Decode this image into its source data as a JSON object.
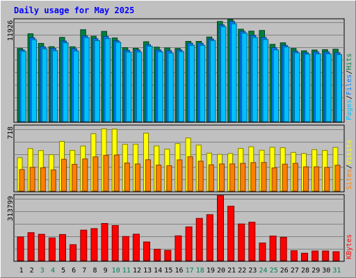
{
  "chart_data": {
    "type": "bar",
    "title": "Daily usage for May 2025",
    "days": [
      "1",
      "2",
      "3",
      "4",
      "5",
      "6",
      "7",
      "8",
      "9",
      "10",
      "11",
      "12",
      "13",
      "14",
      "15",
      "16",
      "17",
      "18",
      "19",
      "20",
      "21",
      "22",
      "23",
      "24",
      "25",
      "26",
      "27",
      "28",
      "29",
      "30",
      "31"
    ],
    "weekend_days": [
      "3",
      "4",
      "10",
      "11",
      "17",
      "18",
      "24",
      "25",
      "31"
    ],
    "panels": [
      {
        "name": "hits-files-pages",
        "ymax_label": "11926",
        "ymax": 11926,
        "legend": [
          "Pages",
          "/",
          "Files",
          "/",
          "Hits"
        ],
        "legend_colors": [
          "#00c0ff",
          "#000000",
          "#0080ff",
          "#000000",
          "#008040"
        ],
        "series": [
          {
            "name": "Hits",
            "color": "#008040",
            "values": [
              8660,
              10400,
              9260,
              8870,
              9970,
              8860,
              10880,
              10110,
              10680,
              9900,
              8760,
              8680,
              9460,
              8820,
              8730,
              8660,
              9500,
              9500,
              10020,
              11850,
              12070,
              10940,
              10710,
              10790,
              9150,
              9330,
              8660,
              8380,
              8470,
              8520,
              8570
            ]
          },
          {
            "name": "Files",
            "color": "#0080ff",
            "values": [
              8480,
              9930,
              8860,
              8650,
              9540,
              8610,
              10140,
              9810,
              10080,
              9570,
              8450,
              8470,
              9100,
              8480,
              8390,
              8480,
              9280,
              9270,
              9770,
              11450,
              11850,
              10680,
              10210,
              9970,
              8740,
              9020,
              8330,
              8140,
              8240,
              8240,
              8150
            ]
          },
          {
            "name": "Pages",
            "color": "#00c0ff",
            "values": [
              8320,
              9700,
              8620,
              8400,
              9330,
              8360,
              9940,
              9600,
              9840,
              9390,
              8230,
              8230,
              8920,
              8270,
              8130,
              8290,
              9040,
              9040,
              9600,
              11250,
              11590,
              10480,
              9970,
              9720,
              8500,
              8840,
              8150,
              7990,
              8020,
              8020,
              7940
            ]
          }
        ]
      },
      {
        "name": "visits-sites",
        "ymax_label": "718",
        "ymax": 718,
        "legend": [
          "Sites",
          "/",
          "Visits"
        ],
        "legend_colors": [
          "#ff8000",
          "#000000",
          "#ffff00"
        ],
        "series": [
          {
            "name": "Visits",
            "color": "#ffff00",
            "values": [
              375,
              478,
              455,
              409,
              558,
              457,
              506,
              645,
              699,
              697,
              525,
              527,
              652,
              507,
              472,
              534,
              597,
              517,
              427,
              413,
              422,
              479,
              498,
              459,
              492,
              488,
              435,
              423,
              466,
              457,
              491
            ]
          },
          {
            "name": "Sites",
            "color": "#ff8000",
            "values": [
              243,
              268,
              263,
              239,
              358,
              301,
              361,
              385,
              403,
              406,
              316,
              305,
              353,
              293,
              286,
              351,
              386,
              336,
              296,
              305,
              306,
              312,
              321,
              322,
              261,
              303,
              312,
              273,
              273,
              267,
              291
            ]
          }
        ]
      },
      {
        "name": "kbytes",
        "ymax_label": "313799",
        "ymax": 313799,
        "legend": [
          "KBytes"
        ],
        "legend_colors": [
          "#ff0000"
        ],
        "series": [
          {
            "name": "KBytes",
            "color": "#ff0000",
            "values": [
              116220,
              137580,
              129440,
              111700,
              128250,
              78490,
              149680,
              157380,
              182520,
              172300,
              118760,
              130060,
              91660,
              56160,
              50510,
              121660,
              165740,
              207400,
              225640,
              319400,
              266950,
              180120,
              188570,
              86470,
              120800,
              114680,
              48740,
              36480,
              47390,
              47390,
              44150
            ]
          }
        ]
      }
    ]
  }
}
